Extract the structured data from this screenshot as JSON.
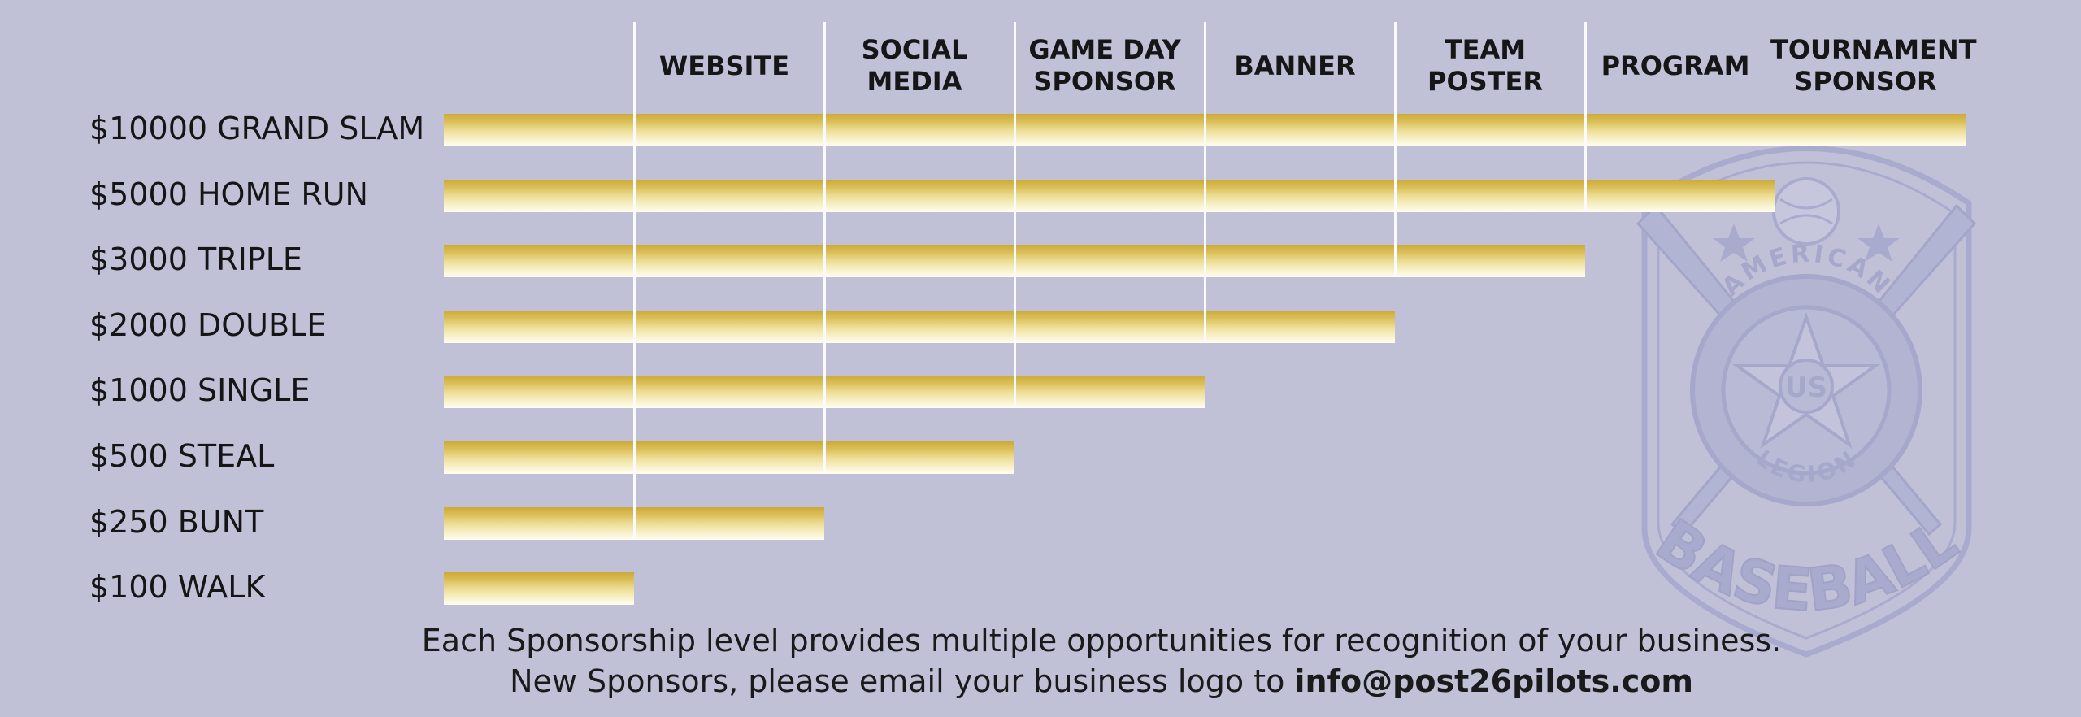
{
  "chart_data": {
    "type": "bar",
    "columns": [
      "WEBSITE",
      "SOCIAL\nMEDIA",
      "GAME DAY\nSPONSOR",
      "BANNER",
      "TEAM\nPOSTER",
      "PROGRAM",
      "TOURNAMENT\nSPONSOR"
    ],
    "categories": [
      "$10000 GRAND SLAM",
      "$5000 HOME RUN",
      "$3000 TRIPLE",
      "$2000 DOUBLE",
      "$1000 SINGLE",
      "$500 STEAL",
      "$250 BUNT",
      "$100 WALK"
    ],
    "values": [
      8,
      7,
      6,
      5,
      4,
      3,
      2,
      1
    ],
    "xlim": [
      0,
      8
    ],
    "grid": true,
    "legend": "none",
    "colors": {
      "background": "#c0c1d7",
      "bar_gold": "#ccaa38",
      "bar_cream": "#fffdf2",
      "divider": "#fafaff",
      "watermark": "#a9abce"
    }
  },
  "footer": {
    "line1": "Each Sponsorship level provides multiple opportunities for recognition of your business.",
    "line2_prefix": "New Sponsors, please email your business logo to ",
    "line2_email": "info@post26pilots.com"
  },
  "watermark": {
    "icon": "american-legion-baseball-logo",
    "ring_top": "AMERICAN",
    "ring_bottom": "LEGION",
    "center": "US",
    "banner": "BASEBALL"
  }
}
